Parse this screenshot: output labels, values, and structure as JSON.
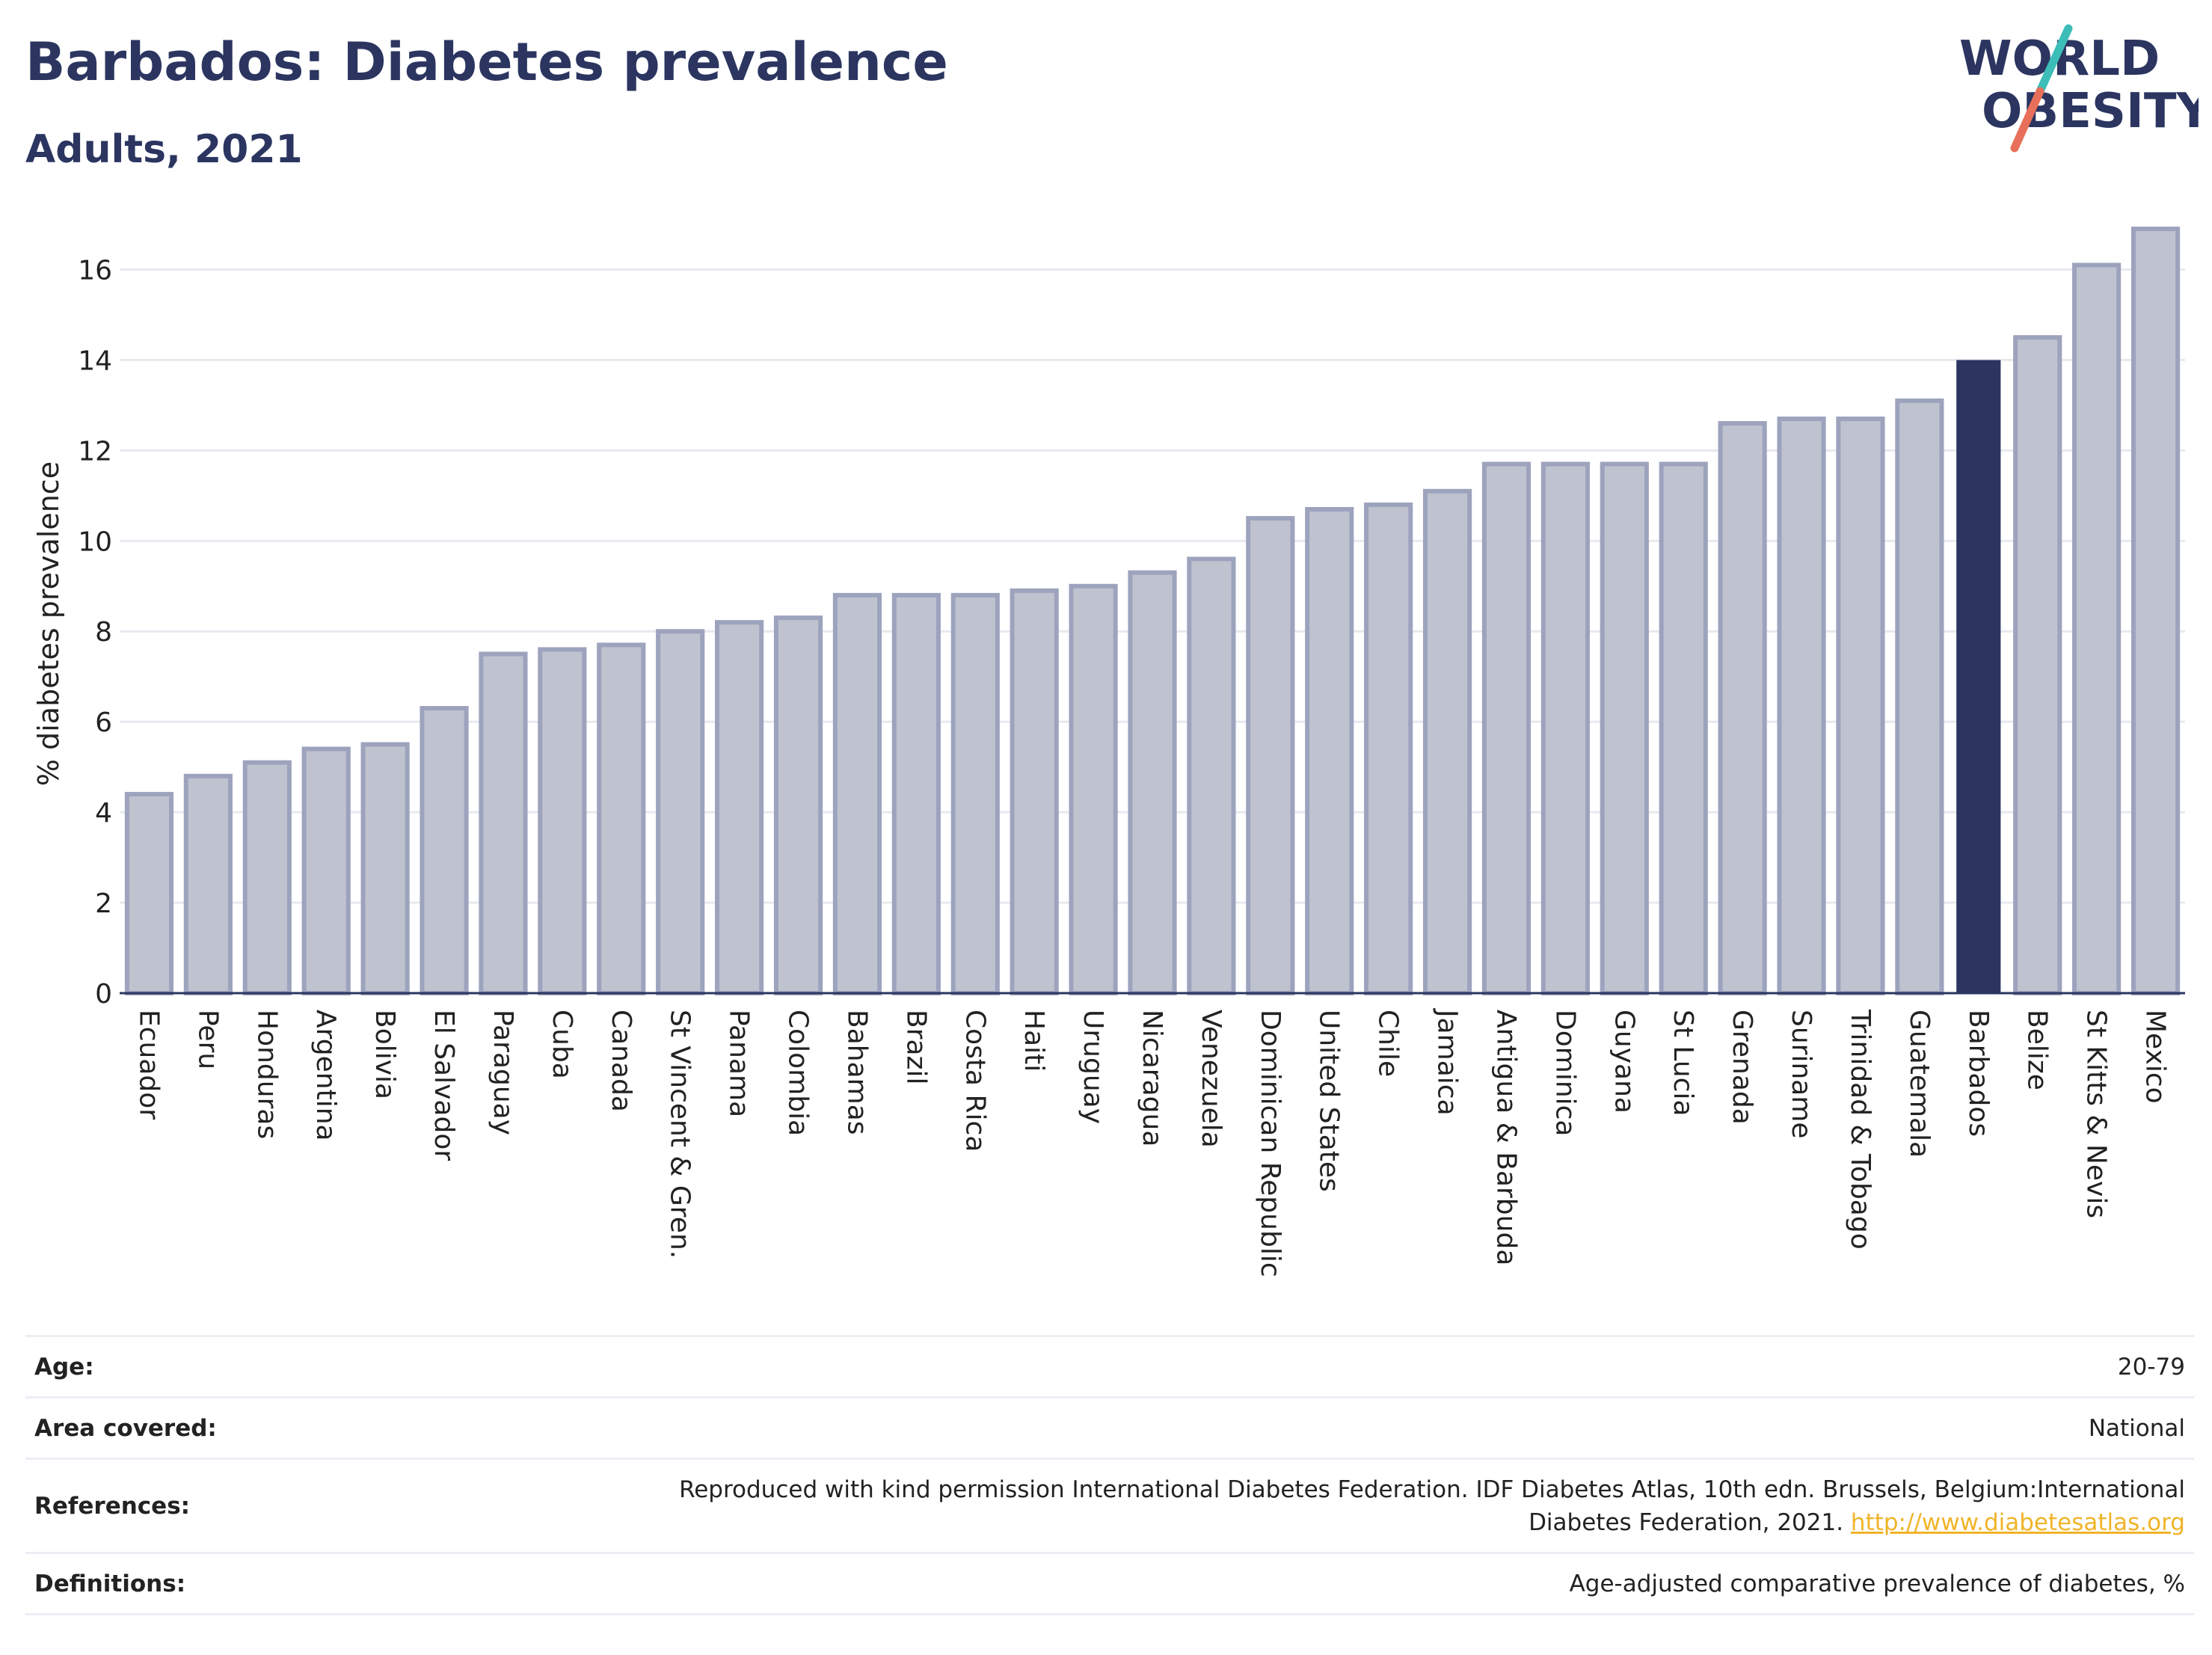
{
  "header": {
    "title": "Barbados: Diabetes prevalence",
    "subtitle": "Adults, 2021",
    "logo_line1": "WORLD",
    "logo_line2": "OBESITY"
  },
  "colors": {
    "highlight_bar": "#2b3560",
    "default_bar_fill": "#bfc3cf",
    "default_bar_stroke": "#9da3bd",
    "logo_text": "#2b3560",
    "logo_teal": "#3dbdb8",
    "logo_coral": "#e8705a",
    "link": "#f0b429"
  },
  "chart_data": {
    "type": "bar",
    "ylabel": "% diabetes prevalence",
    "ylim": [
      0,
      17
    ],
    "yticks": [
      0,
      2,
      4,
      6,
      8,
      10,
      12,
      14,
      16
    ],
    "grid": true,
    "highlight": "Barbados",
    "categories": [
      "Ecuador",
      "Peru",
      "Honduras",
      "Argentina",
      "Bolivia",
      "El Salvador",
      "Paraguay",
      "Cuba",
      "Canada",
      "St Vincent & Gren.",
      "Panama",
      "Colombia",
      "Bahamas",
      "Brazil",
      "Costa Rica",
      "Haiti",
      "Uruguay",
      "Nicaragua",
      "Venezuela",
      "Dominican Republic",
      "United States",
      "Chile",
      "Jamaica",
      "Antigua & Barbuda",
      "Dominica",
      "Guyana",
      "St Lucia",
      "Grenada",
      "Suriname",
      "Trinidad & Tobago",
      "Guatemala",
      "Barbados",
      "Belize",
      "St Kitts & Nevis",
      "Mexico"
    ],
    "values": [
      4.4,
      4.8,
      5.1,
      5.4,
      5.5,
      6.3,
      7.5,
      7.6,
      7.7,
      8.0,
      8.2,
      8.3,
      8.8,
      8.8,
      8.8,
      8.9,
      9.0,
      9.3,
      9.6,
      10.5,
      10.7,
      10.8,
      11.1,
      11.7,
      11.7,
      11.7,
      11.7,
      12.6,
      12.7,
      12.7,
      13.1,
      14.0,
      14.5,
      16.1,
      16.9
    ]
  },
  "info": {
    "age_label": "Age:",
    "age_value": "20-79",
    "area_label": "Area covered:",
    "area_value": "National",
    "references_label": "References:",
    "references_line1": "Reproduced with kind permission International Diabetes Federation.  IDF Diabetes Atlas, 10th edn. Brussels, Belgium:International",
    "references_line2": "Diabetes Federation, 2021.",
    "references_link": "http://www.diabetesatlas.org",
    "definitions_label": "Definitions:",
    "definitions_value": "Age-adjusted comparative prevalence of diabetes, %"
  }
}
